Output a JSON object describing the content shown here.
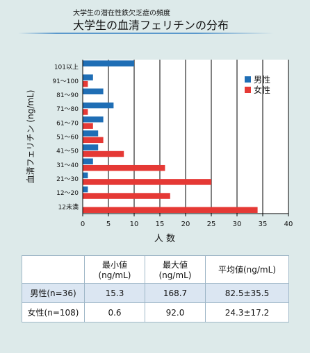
{
  "header": {
    "supertitle": "大学生の潜在性鉄欠乏症の頻度",
    "title": "大学生の血清フェリチンの分布"
  },
  "chart_data": {
    "type": "bar",
    "orientation": "horizontal",
    "categories": [
      "101以上",
      "91～100",
      "81～90",
      "71～80",
      "61～70",
      "51～60",
      "41～50",
      "31～40",
      "21～30",
      "12～20",
      "12未満"
    ],
    "series": [
      {
        "name": "男性",
        "color": "#1f6eb5",
        "values": [
          10,
          2,
          4,
          6,
          4,
          3,
          3,
          2,
          1,
          1,
          0
        ]
      },
      {
        "name": "女性",
        "color": "#e53935",
        "values": [
          0,
          1,
          0,
          1,
          2,
          4,
          8,
          16,
          25,
          17,
          34
        ]
      }
    ],
    "xlabel": "人 数",
    "ylabel": "血清フェリチン (ng/mL)",
    "xlim": [
      0,
      40
    ],
    "xticks": [
      0,
      5,
      10,
      15,
      20,
      25,
      30,
      35,
      40
    ],
    "grid": "vertical",
    "legend": "top-right"
  },
  "stats_table": {
    "headers": [
      "",
      "最小値\n(ng/mL)",
      "最大値\n(ng/mL)",
      "平均値(ng/mL)"
    ],
    "rows": [
      [
        "男性(n=36)",
        "15.3",
        "168.7",
        "82.5±35.5"
      ],
      [
        "女性(n=108)",
        "0.6",
        "92.0",
        "24.3±17.2"
      ]
    ]
  }
}
